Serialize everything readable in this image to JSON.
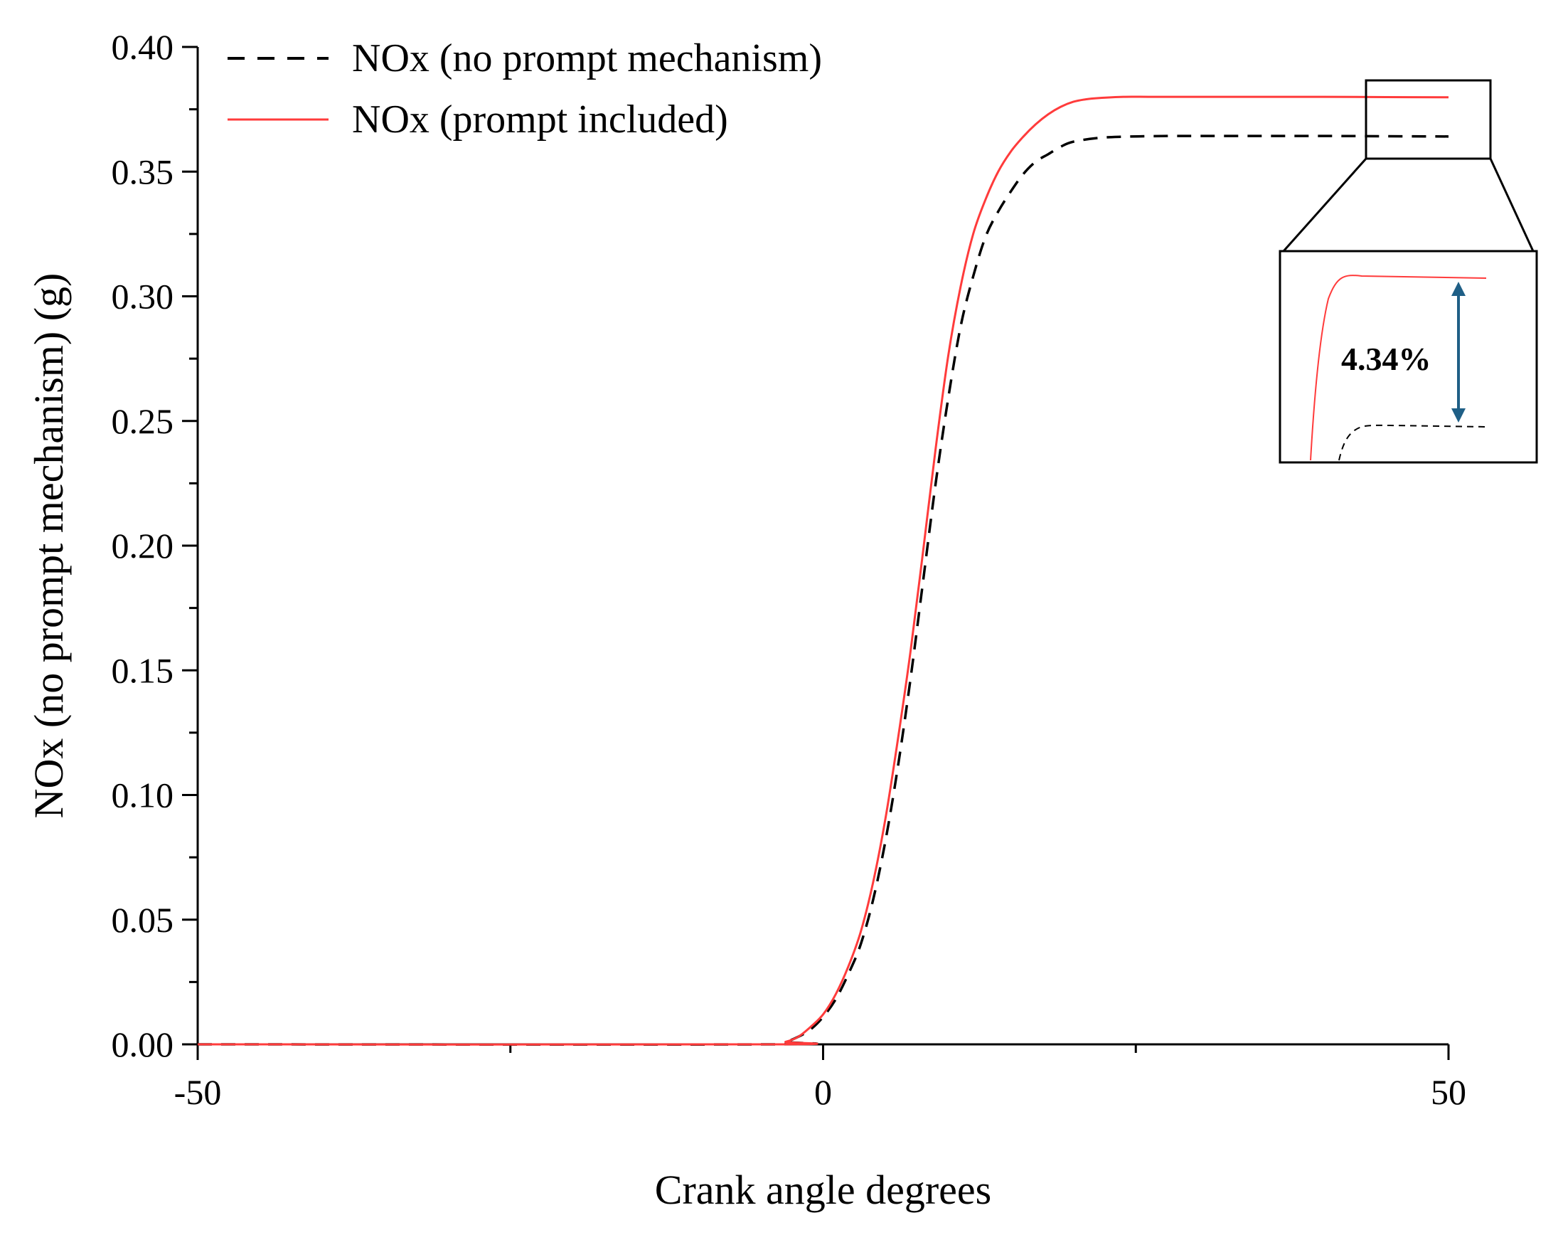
{
  "chart_data": {
    "type": "line",
    "xlabel": "Crank angle degrees",
    "ylabel": "NOx (no prompt mechanism) (g)",
    "xlim": [
      -50,
      50
    ],
    "ylim": [
      0,
      0.4
    ],
    "x_ticks": [
      -50,
      0,
      50
    ],
    "x_tick_labels": [
      "-50",
      "0",
      "50"
    ],
    "x_minor_ticks": [
      -25,
      25
    ],
    "y_ticks": [
      0,
      0.05,
      0.1,
      0.15,
      0.2,
      0.25,
      0.3,
      0.35,
      0.4
    ],
    "y_tick_labels": [
      "0.00",
      "0.05",
      "0.10",
      "0.15",
      "0.20",
      "0.25",
      "0.30",
      "0.35",
      "0.40"
    ],
    "y_minor_ticks": [
      0.025,
      0.075,
      0.125,
      0.175,
      0.225,
      0.275,
      0.325,
      0.375
    ],
    "grid": false,
    "legend_position": "top-left",
    "series": [
      {
        "name": "NOx (no prompt mechanism)",
        "color": "#000000",
        "style": "dashed",
        "x": [
          -50,
          -4.2,
          -3,
          -2,
          -1,
          0,
          1,
          2,
          3,
          4,
          5,
          6,
          7,
          8,
          9,
          10,
          11,
          12,
          13,
          14,
          15,
          16,
          17,
          18,
          19,
          20,
          22,
          24,
          26,
          28,
          30,
          35,
          40,
          45,
          50
        ],
        "y": [
          0,
          0,
          0.001,
          0.003,
          0.006,
          0.011,
          0.018,
          0.028,
          0.04,
          0.058,
          0.082,
          0.112,
          0.147,
          0.186,
          0.225,
          0.259,
          0.288,
          0.308,
          0.324,
          0.334,
          0.342,
          0.349,
          0.354,
          0.357,
          0.36,
          0.362,
          0.3635,
          0.364,
          0.3642,
          0.3643,
          0.3643,
          0.3643,
          0.3643,
          0.3642,
          0.3641
        ]
      },
      {
        "name": "NOx (prompt included)",
        "color": "#ff3b3b",
        "style": "solid",
        "x": [
          -50,
          -4.2,
          -3,
          -2,
          -1,
          0,
          1,
          2,
          3,
          4,
          5,
          6,
          7,
          8,
          9,
          10,
          11,
          12,
          13,
          14,
          15,
          16,
          17,
          18,
          19,
          20,
          21,
          22,
          24,
          26,
          28,
          30,
          35,
          40,
          45,
          50
        ],
        "y": [
          0,
          0,
          0.001,
          0.003,
          0.007,
          0.012,
          0.02,
          0.031,
          0.045,
          0.065,
          0.091,
          0.123,
          0.158,
          0.198,
          0.239,
          0.276,
          0.304,
          0.325,
          0.339,
          0.35,
          0.358,
          0.364,
          0.369,
          0.373,
          0.376,
          0.378,
          0.379,
          0.3795,
          0.38,
          0.38,
          0.38,
          0.38,
          0.38,
          0.38,
          0.3799,
          0.3798
        ]
      }
    ],
    "annotations": [
      {
        "text": "4.34%"
      }
    ]
  },
  "colors": {
    "axis": "#000000",
    "arrow": "#1f5f86"
  }
}
